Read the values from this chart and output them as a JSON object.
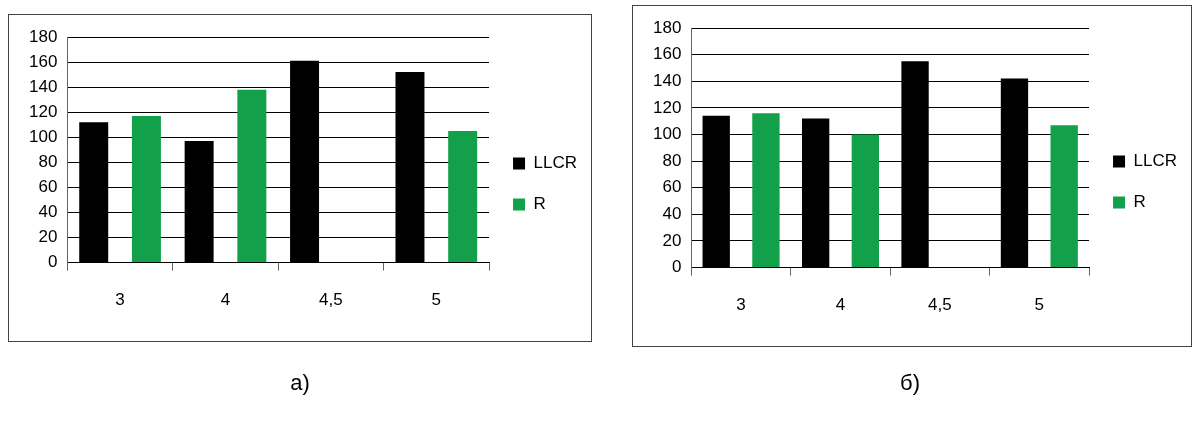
{
  "chart_data": [
    {
      "type": "bar",
      "categories": [
        "3",
        "4",
        "4,5",
        "5"
      ],
      "series": [
        {
          "name": "LLCR",
          "color": "#000000",
          "values": [
            112,
            97,
            161,
            152
          ]
        },
        {
          "name": "R",
          "color": "#12a14a",
          "values": [
            117,
            138,
            null,
            105
          ]
        }
      ],
      "ylim": [
        0,
        180
      ],
      "yticks": [
        0,
        20,
        40,
        60,
        80,
        100,
        120,
        140,
        160,
        180
      ],
      "grid": "y",
      "legend": "right",
      "annotations": [
        "а)"
      ]
    },
    {
      "type": "bar",
      "categories": [
        "3",
        "4",
        "4,5",
        "5"
      ],
      "series": [
        {
          "name": "LLCR",
          "color": "#000000",
          "values": [
            114,
            112,
            155,
            142
          ]
        },
        {
          "name": "R",
          "color": "#12a14a",
          "values": [
            116,
            100,
            null,
            107
          ]
        }
      ],
      "ylim": [
        0,
        180
      ],
      "yticks": [
        0,
        20,
        40,
        60,
        80,
        100,
        120,
        140,
        160,
        180
      ],
      "grid": "y",
      "legend": "right",
      "annotations": [
        "б)"
      ]
    }
  ]
}
